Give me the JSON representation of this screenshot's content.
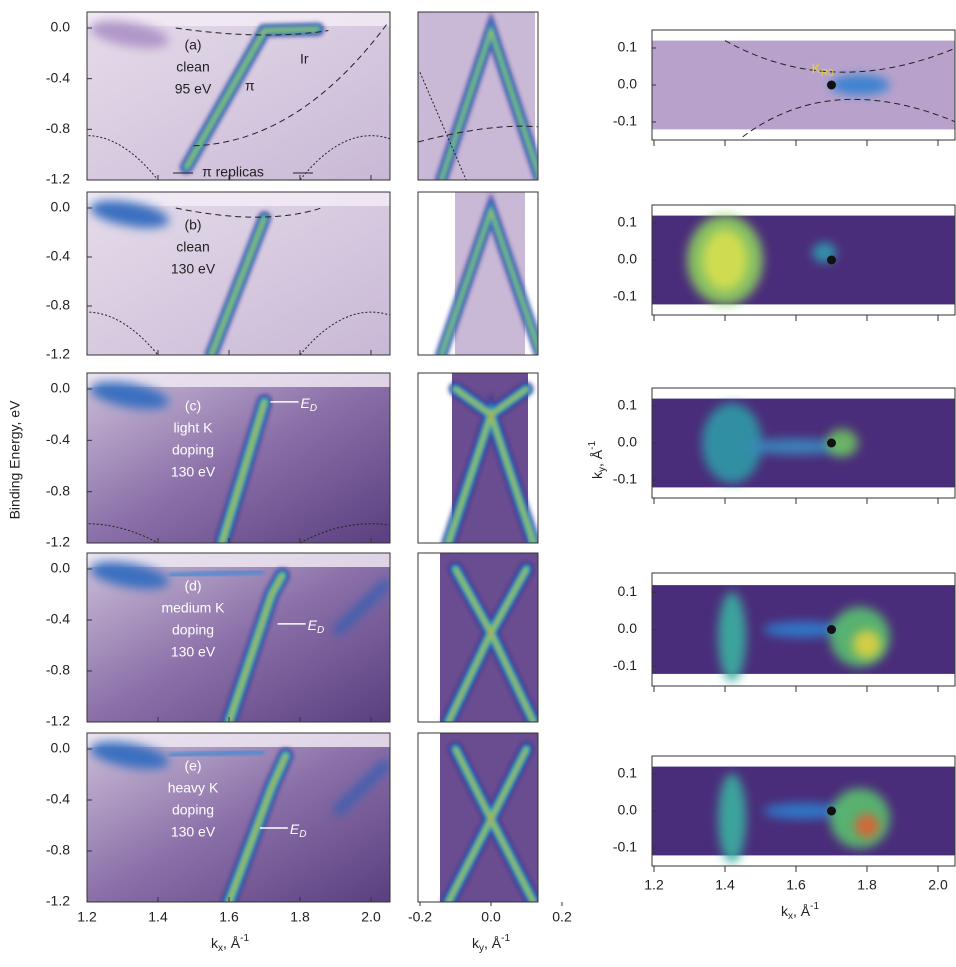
{
  "y_axis_left": {
    "title": "Binding Energy, eV",
    "ticks": [
      "0.0",
      "-0.4",
      "-0.8",
      "-1.2"
    ]
  },
  "x_axis_left": {
    "symbol": "k",
    "subscript": "x",
    "unit": ", Å",
    "superscript": "-1",
    "ticks": [
      "1.2",
      "1.4",
      "1.6",
      "1.8",
      "2.0"
    ]
  },
  "x_axis_middle": {
    "symbol": "k",
    "subscript": "y",
    "unit": ", Å",
    "superscript": "-1",
    "ticks": [
      "-0.2",
      "0.0",
      "0.2"
    ]
  },
  "y_axis_right": {
    "symbol": "k",
    "subscript": "y",
    "unit": ", Å",
    "superscript": "-1",
    "ticks": [
      "0.1",
      "0.0",
      "-0.1"
    ]
  },
  "x_axis_right": {
    "symbol": "k",
    "subscript": "x",
    "unit": ", Å",
    "superscript": "-1",
    "ticks": [
      "1.2",
      "1.4",
      "1.6",
      "1.8",
      "2.0"
    ]
  },
  "panels": [
    {
      "lines": [
        "(a)",
        "clean",
        "95 eV"
      ]
    },
    {
      "lines": [
        "(b)",
        "clean",
        "130 eV"
      ]
    },
    {
      "lines": [
        "(c)",
        "light K",
        "doping",
        "130 eV"
      ]
    },
    {
      "lines": [
        "(d)",
        "medium K",
        "doping",
        "130 eV"
      ]
    },
    {
      "lines": [
        "(e)",
        "heavy K",
        "doping",
        "130 eV"
      ]
    }
  ],
  "annotations": {
    "pi": "π",
    "ir": "Ir",
    "replicas": "π replicas",
    "k_symbol": "K",
    "k_subscript": "R0",
    "ed_symbol": "E",
    "ed_subscript": "D"
  }
}
